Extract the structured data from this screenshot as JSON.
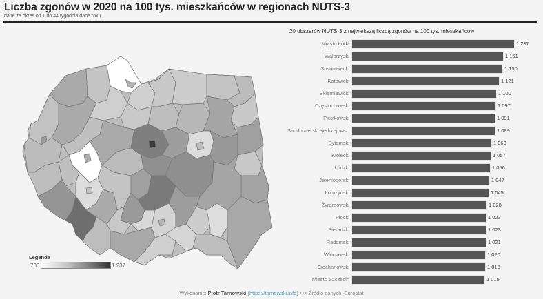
{
  "header": {
    "title": "Liczba zgonów w 2020 na 100 tys. mieszkańców w  regionach NUTS-3",
    "subtitle": "dane za okres od 1 do 44 tygodnia dane roku"
  },
  "map": {
    "legend_title": "Legenda",
    "legend_min": "700",
    "legend_max": "1 237",
    "color_min": "#ffffff",
    "color_max": "#333333"
  },
  "bar_chart": {
    "title": "20 obszarów NUTS-3 z największą liczbą zgonów na 100 tys. mieszkańców",
    "bar_color": "#555555"
  },
  "chart_data": {
    "type": "bar",
    "orientation": "horizontal",
    "title": "20 obszarów NUTS-3 z największą liczbą zgonów na 100 tys. mieszkańców",
    "xlabel": "",
    "ylabel": "",
    "categories": [
      "Miasto Łódź",
      "Wałbrzyski",
      "Sosnowiecki",
      "Katowicki",
      "Skierniewicki",
      "Częstochowski",
      "Piotrkowski",
      "Sandomiersko-jędrzejows..",
      "Bytomski",
      "Kielecki",
      "Łódzki",
      "Jeleniogórski",
      "Łomżyński",
      "Żyrardowski",
      "Płocki",
      "Sieradzki",
      "Radomski",
      "Włocławski",
      "Ciechanowski",
      "Miasto Szczecin"
    ],
    "values": [
      1237,
      1151,
      1150,
      1121,
      1100,
      1097,
      1091,
      1089,
      1063,
      1057,
      1056,
      1047,
      1045,
      1028,
      1023,
      1023,
      1021,
      1020,
      1016,
      1015
    ],
    "value_labels": [
      "1 237",
      "1 151",
      "1 150",
      "1 121",
      "1 100",
      "1 097",
      "1 091",
      "1 089",
      "1 063",
      "1 057",
      "1 056",
      "1 047",
      "1 045",
      "1 028",
      "1 023",
      "1 023",
      "1 021",
      "1 020",
      "1 016",
      "1 015"
    ],
    "xlim": [
      0,
      1237
    ],
    "grid": false,
    "legend": "none"
  },
  "footer": {
    "prefix": "Wykonanie: ",
    "author": "Piotr Tarnowski",
    "link_open": " (",
    "link": "https://tarnowski.info",
    "link_close": ") ",
    "separator": "•••",
    "source": " Źródło danych: Eurostat"
  }
}
